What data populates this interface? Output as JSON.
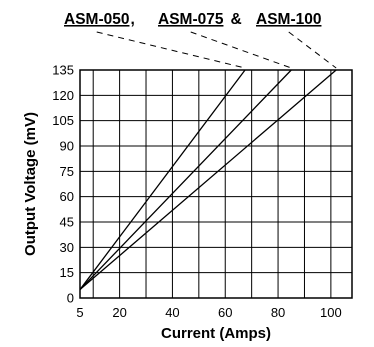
{
  "chart_data": {
    "type": "line",
    "title": "",
    "xlabel": "Current (Amps)",
    "ylabel": "Output Voltage (mV)",
    "xlim": [
      5,
      108
    ],
    "ylim": [
      0,
      135
    ],
    "x_ticks": [
      5,
      20,
      40,
      60,
      80,
      100
    ],
    "y_ticks": [
      0,
      15,
      30,
      45,
      60,
      75,
      90,
      105,
      120,
      135
    ],
    "grid": true,
    "legend_position": "top",
    "legend_items": [
      {
        "label": "ASM-050",
        "after": ","
      },
      {
        "label": "ASM-075",
        "after": "&"
      },
      {
        "label": "ASM-100",
        "after": ""
      }
    ],
    "series": [
      {
        "x": [
          5,
          67.5
        ],
        "y": [
          5,
          135
        ]
      },
      {
        "x": [
          5,
          85
        ],
        "y": [
          5,
          135
        ]
      },
      {
        "x": [
          5,
          102
        ],
        "y": [
          5,
          135
        ]
      }
    ]
  }
}
